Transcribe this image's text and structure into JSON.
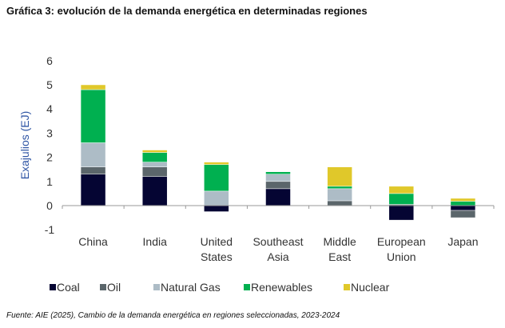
{
  "chart_data": {
    "type": "bar",
    "stacked": true,
    "title": "Gráfica 3: evolución de la demanda energética en determinadas regiones",
    "ylabel": "Exajulios (EJ)",
    "xlabel": "",
    "ylim": [
      -1,
      6
    ],
    "yticks": [
      "-1",
      "0",
      "1",
      "2",
      "3",
      "4",
      "5",
      "6"
    ],
    "grid": false,
    "legend_position": "bottom",
    "categories": [
      [
        "China"
      ],
      [
        "India"
      ],
      [
        "United",
        "States"
      ],
      [
        "Southeast",
        "Asia"
      ],
      [
        "Middle",
        "East"
      ],
      [
        "European",
        "Union"
      ],
      [
        "Japan"
      ]
    ],
    "series": [
      {
        "name": "Coal",
        "color": "#050533",
        "values": [
          1.3,
          1.2,
          -0.25,
          0.7,
          0,
          -0.6,
          -0.2
        ]
      },
      {
        "name": "Oil",
        "color": "#5b666b",
        "values": [
          0.3,
          0.4,
          0,
          0.3,
          0.2,
          0.05,
          -0.3
        ]
      },
      {
        "name": "Natural Gas",
        "color": "#adbcc6",
        "values": [
          1.0,
          0.2,
          0.6,
          0.3,
          0.5,
          0,
          0
        ]
      },
      {
        "name": "Renewables",
        "color": "#00b050",
        "values": [
          2.2,
          0.4,
          1.1,
          0.1,
          0.1,
          0.45,
          0.18
        ]
      },
      {
        "name": "Nuclear",
        "color": "#e0c82a",
        "values": [
          0.2,
          0.1,
          0.1,
          0,
          0.8,
          0.3,
          0.12
        ]
      }
    ]
  },
  "source": "Fuente: AIE (2025), Cambio de la demanda energética en regiones seleccionadas, 2023-2024"
}
